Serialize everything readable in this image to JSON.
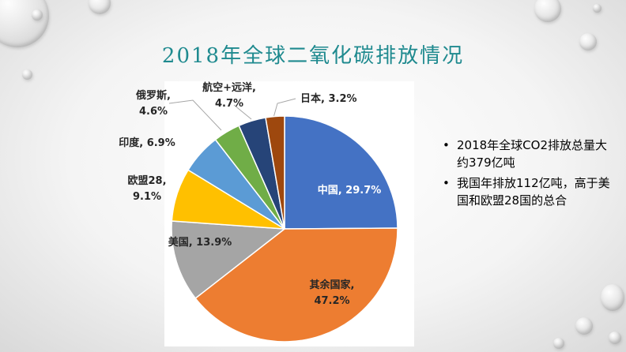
{
  "title": "2018年全球二氧化碳排放情况",
  "chart_data": {
    "type": "pie",
    "title": "",
    "slices": [
      {
        "label": "中国",
        "value": 29.7,
        "color": "#4472c4",
        "text_color": "#ffffff",
        "display": [
          "中国, 29.7%"
        ]
      },
      {
        "label": "其余国家",
        "value": 47.2,
        "color": "#ed7d31",
        "text_color": "#262626",
        "display": [
          "其余国家,",
          "47.2%"
        ]
      },
      {
        "label": "美国",
        "value": 13.9,
        "color": "#a5a5a5",
        "text_color": "#262626",
        "display": [
          "美国, 13.9%"
        ]
      },
      {
        "label": "欧盟28",
        "value": 9.1,
        "color": "#ffc000",
        "text_color": "#262626",
        "display": [
          "欧盟28,",
          "9.1%"
        ]
      },
      {
        "label": "印度",
        "value": 6.9,
        "color": "#5b9bd5",
        "text_color": "#262626",
        "display": [
          "印度, 6.9%"
        ]
      },
      {
        "label": "俄罗斯",
        "value": 4.6,
        "color": "#70ad47",
        "text_color": "#262626",
        "display": [
          "俄罗斯,",
          "4.6%"
        ]
      },
      {
        "label": "航空+远洋",
        "value": 4.7,
        "color": "#264478",
        "text_color": "#262626",
        "display": [
          "航空+远洋,",
          "4.7%"
        ]
      },
      {
        "label": "日本",
        "value": 3.2,
        "color": "#9e480e",
        "text_color": "#262626",
        "display": [
          "日本, 3.2%"
        ]
      }
    ]
  },
  "notes": [
    "2018年全球CO2排放总量大约379亿吨",
    "我国年排放112亿吨，高于美国和欧盟28国的总合"
  ]
}
